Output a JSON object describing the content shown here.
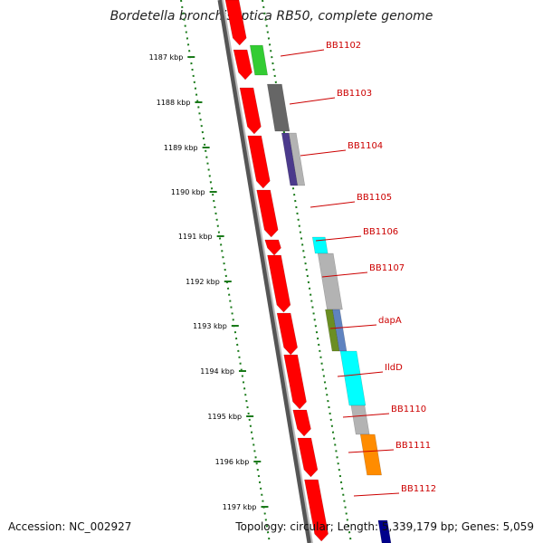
{
  "title": "Bordetella bronchiseptica RB50, complete genome",
  "footer": {
    "accession": "Accession: NC_002927",
    "summary": "Topology: circular; Length: 5,339,179 bp; Genes: 5,059"
  },
  "colors": {
    "backbone": "#808080",
    "ticks": "#1a7a1a",
    "label_leader": "#cc0000",
    "forward_strand": "#ff0000"
  },
  "ticks": [
    "1187 kbp",
    "1188 kbp",
    "1189 kbp",
    "1190 kbp",
    "1191 kbp",
    "1192 kbp",
    "1193 kbp",
    "1194 kbp",
    "1195 kbp",
    "1196 kbp",
    "1197 kbp"
  ],
  "genes": [
    {
      "name": "BB1102",
      "color": "#33cc33"
    },
    {
      "name": "BB1103",
      "color": "#666666"
    },
    {
      "name": "BB1104",
      "color": "#4b3a8c"
    },
    {
      "name": "BB1105",
      "color": "#ff0000"
    },
    {
      "name": "BB1106",
      "color": "#00ffff"
    },
    {
      "name": "BB1107",
      "color": "#b3b3b3"
    },
    {
      "name": "dapA",
      "color": "#6b8e23"
    },
    {
      "name": "IldD",
      "color": "#00ffff"
    },
    {
      "name": "BB1110",
      "color": "#b3b3b3"
    },
    {
      "name": "BB1111",
      "color": "#ff8c00"
    },
    {
      "name": "BB1112",
      "color": "#ff0000"
    }
  ]
}
